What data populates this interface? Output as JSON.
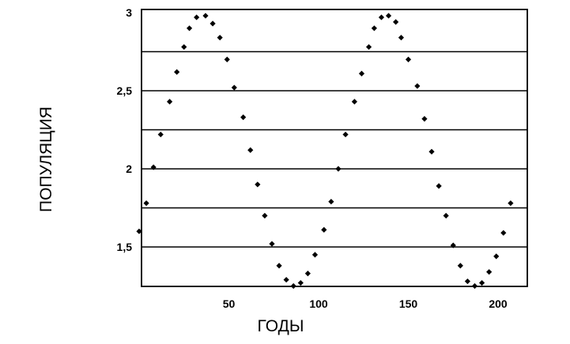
{
  "chart_data": {
    "type": "scatter",
    "title": "",
    "xlabel": "ГОДЫ",
    "ylabel": "ПОПУЛЯЦИЯ",
    "xlim": [
      0,
      212
    ],
    "ylim": [
      1.25,
      3.0
    ],
    "x_ticks": [
      {
        "value": 50,
        "label": "50"
      },
      {
        "value": 100,
        "label": "100"
      },
      {
        "value": 150,
        "label": "150"
      },
      {
        "value": 200,
        "label": "200"
      }
    ],
    "y_ticks": [
      {
        "value": 1.5,
        "label": "1,5"
      },
      {
        "value": 2,
        "label": "2"
      },
      {
        "value": 2.5,
        "label": "2,5"
      },
      {
        "value": 3,
        "label": "3"
      }
    ],
    "grid": "horizontal",
    "grid_values": [
      1.5,
      1.75,
      2.0,
      2.25,
      2.5,
      2.75
    ],
    "series": [
      {
        "marker": "diamond",
        "color": "#000000",
        "points": [
          [
            0,
            1.6
          ],
          [
            4,
            1.78
          ],
          [
            8,
            2.01
          ],
          [
            12,
            2.22
          ],
          [
            17,
            2.43
          ],
          [
            21,
            2.62
          ],
          [
            25,
            2.78
          ],
          [
            28,
            2.9
          ],
          [
            32,
            2.97
          ],
          [
            37,
            2.98
          ],
          [
            41,
            2.93
          ],
          [
            45,
            2.84
          ],
          [
            49,
            2.7
          ],
          [
            53,
            2.52
          ],
          [
            58,
            2.33
          ],
          [
            62,
            2.12
          ],
          [
            66,
            1.9
          ],
          [
            70,
            1.7
          ],
          [
            74,
            1.52
          ],
          [
            78,
            1.38
          ],
          [
            82,
            1.29
          ],
          [
            86,
            1.25
          ],
          [
            90,
            1.27
          ],
          [
            94,
            1.33
          ],
          [
            98,
            1.45
          ],
          [
            103,
            1.61
          ],
          [
            107,
            1.79
          ],
          [
            111,
            2.0
          ],
          [
            115,
            2.22
          ],
          [
            120,
            2.43
          ],
          [
            124,
            2.61
          ],
          [
            128,
            2.78
          ],
          [
            131,
            2.9
          ],
          [
            135,
            2.97
          ],
          [
            139,
            2.98
          ],
          [
            143,
            2.94
          ],
          [
            146,
            2.84
          ],
          [
            150,
            2.7
          ],
          [
            155,
            2.53
          ],
          [
            159,
            2.32
          ],
          [
            163,
            2.11
          ],
          [
            167,
            1.89
          ],
          [
            171,
            1.7
          ],
          [
            175,
            1.51
          ],
          [
            179,
            1.38
          ],
          [
            183,
            1.28
          ],
          [
            187,
            1.25
          ],
          [
            191,
            1.27
          ],
          [
            195,
            1.34
          ],
          [
            199,
            1.44
          ],
          [
            203,
            1.59
          ],
          [
            207,
            1.78
          ]
        ]
      }
    ]
  }
}
